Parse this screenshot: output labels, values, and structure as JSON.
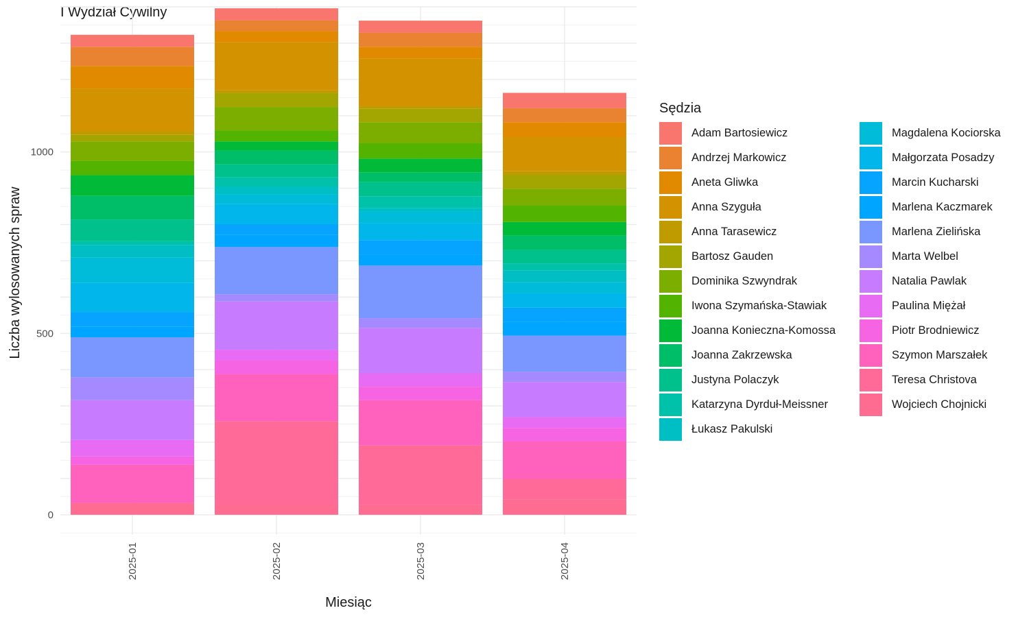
{
  "title": "I Wydział Cywilny",
  "chart_data": {
    "type": "bar",
    "stacked": true,
    "xlabel": "Miesiąc",
    "ylabel": "Liczba wylosowanych spraw",
    "categories": [
      "2025-01",
      "2025-02",
      "2025-03",
      "2025-04"
    ],
    "ylim": [
      -55,
      1400
    ],
    "yticks": [
      0,
      500,
      1000
    ],
    "grid": true,
    "legend_title": "Sędzia",
    "legend_placement": "right",
    "series": [
      {
        "name": "Adam Bartosiewicz",
        "color": "#F8766D",
        "values": [
          33,
          33,
          33,
          42
        ]
      },
      {
        "name": "Andrzej Markowicz",
        "color": "#EA8331",
        "values": [
          53,
          30,
          39,
          39
        ]
      },
      {
        "name": "Aneta Gliwka",
        "color": "#E18A00",
        "values": [
          62,
          30,
          32,
          42
        ]
      },
      {
        "name": "Anna Szyguła",
        "color": "#D39200",
        "values": [
          118,
          133,
          131,
          93
        ]
      },
      {
        "name": "Anna Tarasewicz",
        "color": "#C09B00",
        "values": [
          10,
          8,
          8,
          10
        ]
      },
      {
        "name": "Bartosz Gauden",
        "color": "#A3A500",
        "values": [
          18,
          38,
          37,
          38
        ]
      },
      {
        "name": "Dominika Szwyndrak",
        "color": "#7CAE00",
        "values": [
          53,
          65,
          58,
          47
        ]
      },
      {
        "name": "Iwona Szymańska-Stawiak",
        "color": "#53B400",
        "values": [
          40,
          30,
          42,
          45
        ]
      },
      {
        "name": "Joanna Konieczna-Komossa",
        "color": "#00BA38",
        "values": [
          57,
          25,
          38,
          37
        ]
      },
      {
        "name": "Joanna Zakrzewska",
        "color": "#00BE67",
        "values": [
          65,
          38,
          27,
          40
        ]
      },
      {
        "name": "Justyna Polaczyk",
        "color": "#00C08B",
        "values": [
          60,
          35,
          39,
          37
        ]
      },
      {
        "name": "Katarzyna Dyrduł-Meissner",
        "color": "#00C1A9",
        "values": [
          10,
          27,
          32,
          20
        ]
      },
      {
        "name": "Łukasz Pakulski",
        "color": "#00BFC4",
        "values": [
          35,
          20,
          10,
          32
        ]
      },
      {
        "name": "Magdalena Kociorska",
        "color": "#00BCD8",
        "values": [
          70,
          28,
          32,
          30
        ]
      },
      {
        "name": "Małgorzata Posadzy",
        "color": "#00B6EB",
        "values": [
          80,
          55,
          47,
          40
        ]
      },
      {
        "name": "Marcin Kucharski",
        "color": "#06A4FF",
        "values": [
          40,
          30,
          40,
          40
        ]
      },
      {
        "name": "Marlena Kaczmarek",
        "color": "#00A5FF",
        "values": [
          30,
          33,
          30,
          37
        ]
      },
      {
        "name": "Marlena Zielińska",
        "color": "#7A97FF",
        "values": [
          110,
          130,
          145,
          100
        ]
      },
      {
        "name": "Marta Welbel",
        "color": "#A58AFF",
        "values": [
          63,
          20,
          27,
          28
        ]
      },
      {
        "name": "Natalia Pawlak",
        "color": "#C77CFF",
        "values": [
          110,
          133,
          125,
          97
        ]
      },
      {
        "name": "Paulina Miężał",
        "color": "#E76BF3",
        "values": [
          45,
          30,
          37,
          30
        ]
      },
      {
        "name": "Piotr Brodniewicz",
        "color": "#F664E3",
        "values": [
          23,
          37,
          37,
          37
        ]
      },
      {
        "name": "Szymon Marszałek",
        "color": "#FF62BC",
        "values": [
          105,
          130,
          125,
          103
        ]
      },
      {
        "name": "Teresa Christova",
        "color": "#FF6A98",
        "values": [
          3,
          228,
          163,
          57
        ]
      },
      {
        "name": "Wojciech Chojnicki",
        "color": "#FF6C91",
        "values": [
          30,
          30,
          28,
          42
        ]
      }
    ]
  }
}
